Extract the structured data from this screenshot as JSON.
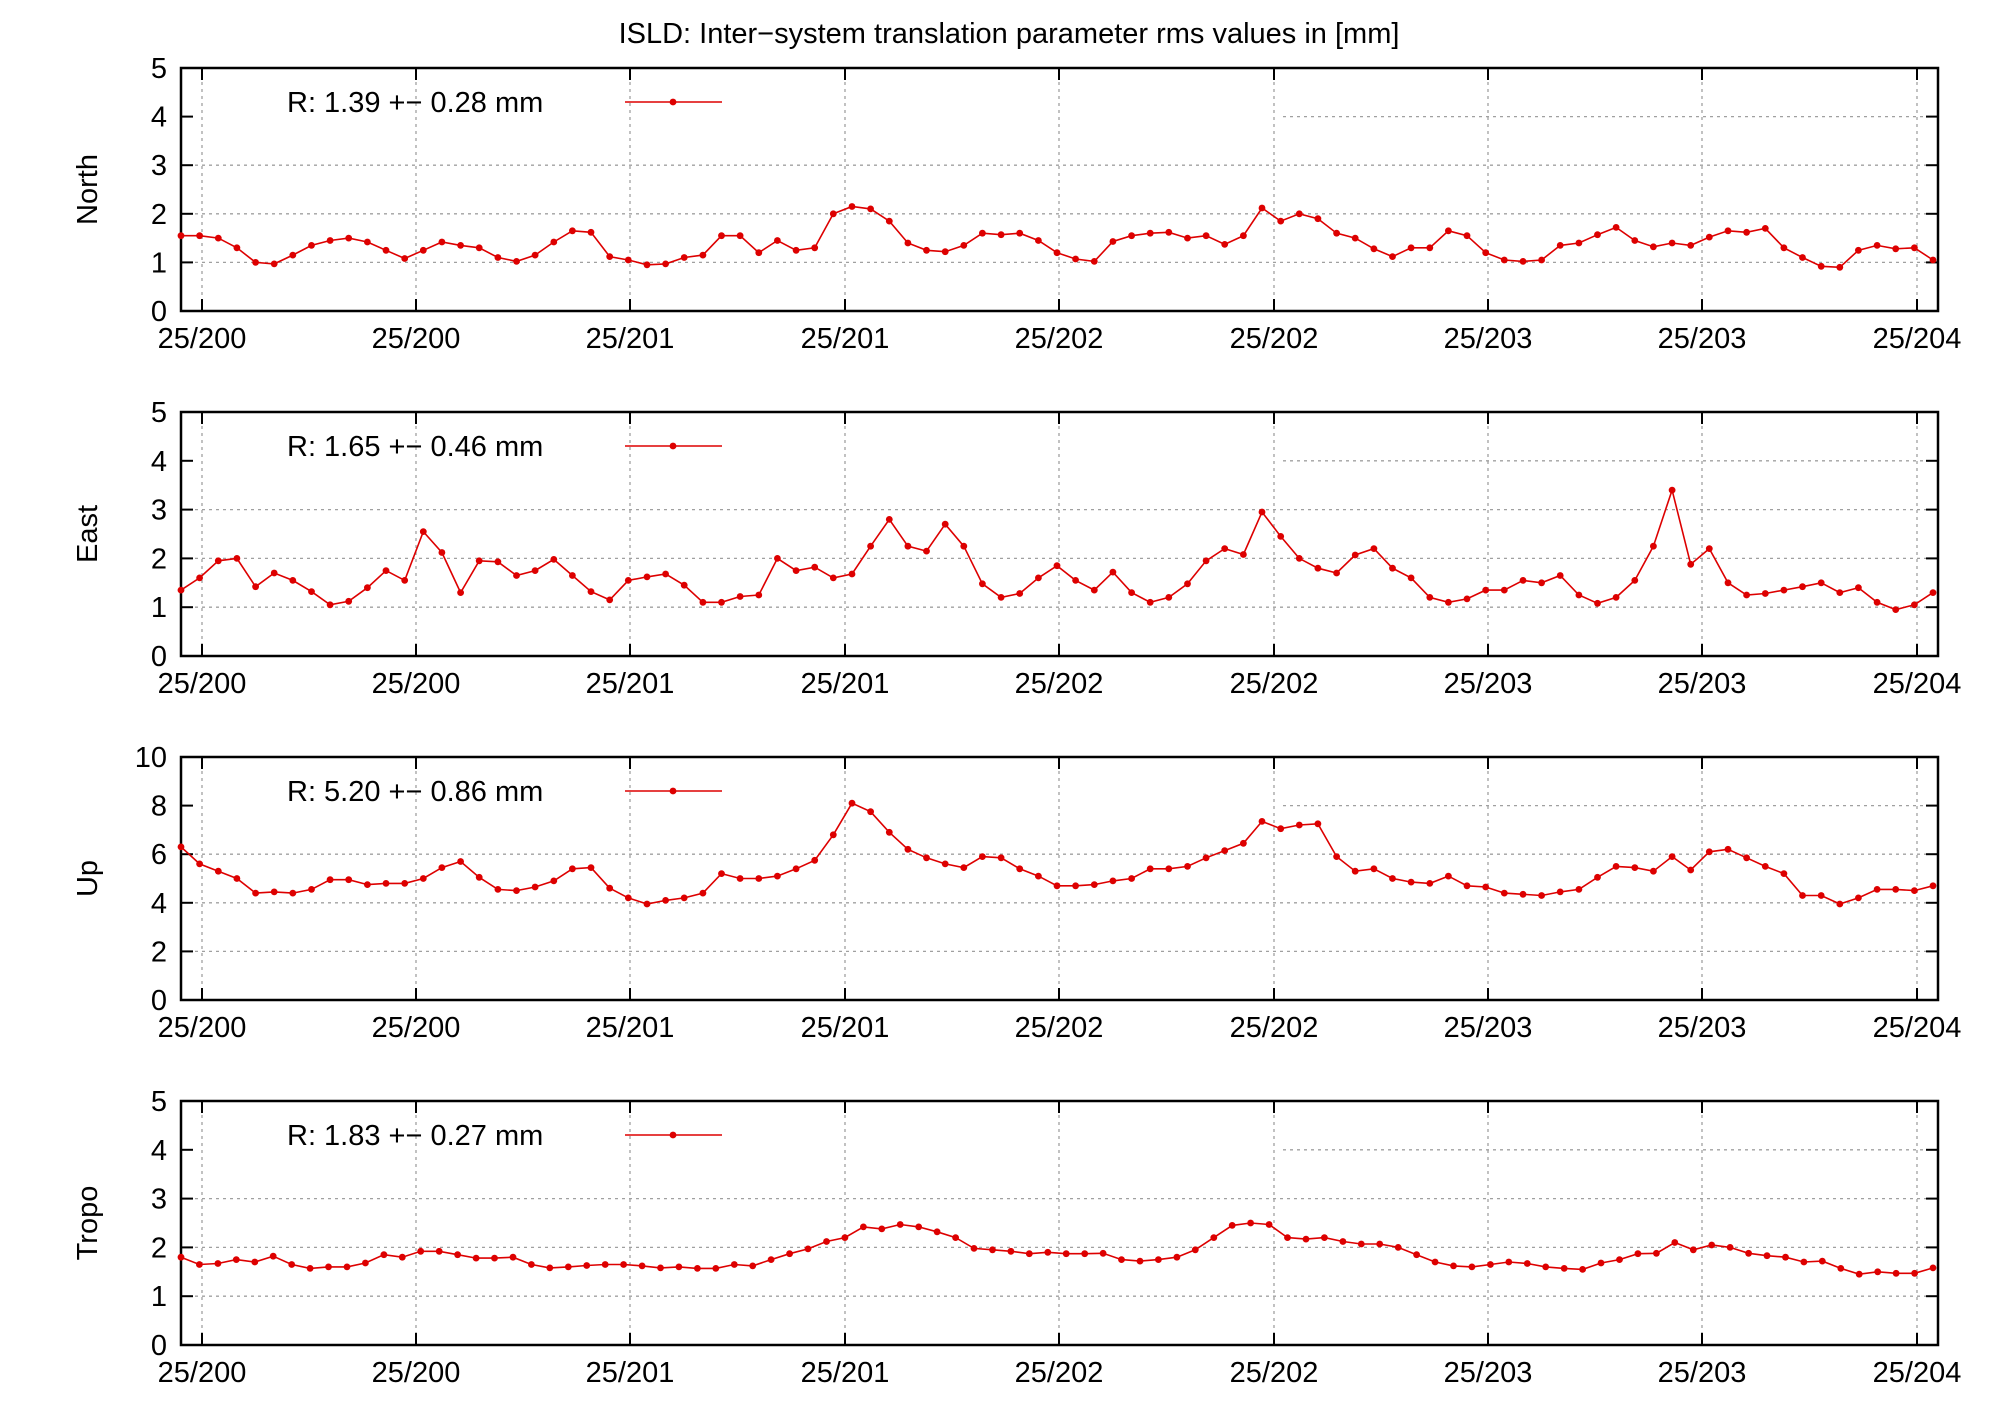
{
  "title": "ISLD: Inter−system translation parameter rms values in [mm]",
  "colors": {
    "series": "#dd0000",
    "grid": "#a0a0a0",
    "axis": "#000000"
  },
  "x_tick_labels": [
    "25/200",
    "25/200",
    "25/201",
    "25/201",
    "25/202",
    "25/202",
    "25/203",
    "25/203",
    "25/204"
  ],
  "chart_data": [
    {
      "type": "line",
      "ylabel": "North",
      "ylim": [
        0,
        5
      ],
      "yticks": [
        0,
        1,
        2,
        3,
        4,
        5
      ],
      "legend": "R:   1.39 +− 0.28 mm",
      "legend_placement": "top-left",
      "grid": true,
      "values": [
        1.55,
        1.55,
        1.5,
        1.3,
        1.0,
        0.97,
        1.15,
        1.35,
        1.45,
        1.5,
        1.42,
        1.25,
        1.08,
        1.25,
        1.42,
        1.35,
        1.3,
        1.1,
        1.02,
        1.15,
        1.42,
        1.65,
        1.62,
        1.12,
        1.05,
        0.95,
        0.97,
        1.1,
        1.15,
        1.55,
        1.55,
        1.2,
        1.45,
        1.25,
        1.3,
        2.0,
        2.15,
        2.1,
        1.85,
        1.4,
        1.25,
        1.22,
        1.35,
        1.6,
        1.57,
        1.6,
        1.45,
        1.2,
        1.07,
        1.02,
        1.43,
        1.55,
        1.6,
        1.62,
        1.5,
        1.55,
        1.37,
        1.55,
        2.12,
        1.85,
        2.0,
        1.9,
        1.6,
        1.5,
        1.28,
        1.12,
        1.3,
        1.3,
        1.65,
        1.55,
        1.2,
        1.05,
        1.02,
        1.05,
        1.35,
        1.4,
        1.57,
        1.72,
        1.45,
        1.32,
        1.4,
        1.35,
        1.52,
        1.65,
        1.62,
        1.7,
        1.3,
        1.1,
        0.92,
        0.9,
        1.25,
        1.35,
        1.28,
        1.3,
        1.05
      ]
    },
    {
      "type": "line",
      "ylabel": "East",
      "ylim": [
        0,
        5
      ],
      "yticks": [
        0,
        1,
        2,
        3,
        4,
        5
      ],
      "legend": "R:   1.65 +− 0.46 mm",
      "legend_placement": "top-left",
      "grid": true,
      "values": [
        1.35,
        1.6,
        1.95,
        2.0,
        1.42,
        1.7,
        1.55,
        1.32,
        1.05,
        1.12,
        1.4,
        1.75,
        1.55,
        2.55,
        2.12,
        1.3,
        1.95,
        1.93,
        1.65,
        1.75,
        1.98,
        1.65,
        1.32,
        1.15,
        1.55,
        1.62,
        1.68,
        1.45,
        1.1,
        1.1,
        1.22,
        1.25,
        2.0,
        1.75,
        1.82,
        1.6,
        1.68,
        2.25,
        2.8,
        2.25,
        2.15,
        2.7,
        2.25,
        1.48,
        1.2,
        1.28,
        1.6,
        1.85,
        1.55,
        1.35,
        1.72,
        1.3,
        1.1,
        1.2,
        1.48,
        1.95,
        2.2,
        2.08,
        2.95,
        2.45,
        2.0,
        1.8,
        1.7,
        2.07,
        2.2,
        1.8,
        1.6,
        1.2,
        1.1,
        1.17,
        1.35,
        1.35,
        1.55,
        1.5,
        1.65,
        1.25,
        1.08,
        1.2,
        1.55,
        2.25,
        3.4,
        1.88,
        2.2,
        1.5,
        1.25,
        1.28,
        1.35,
        1.42,
        1.5,
        1.3,
        1.4,
        1.1,
        0.95,
        1.05,
        1.3
      ]
    },
    {
      "type": "line",
      "ylabel": "Up",
      "ylim": [
        0,
        10
      ],
      "yticks": [
        0,
        2,
        4,
        6,
        8,
        10
      ],
      "legend": "R:   5.20 +− 0.86 mm",
      "legend_placement": "top-left",
      "grid": true,
      "values": [
        6.3,
        5.6,
        5.3,
        5.0,
        4.4,
        4.45,
        4.4,
        4.55,
        4.95,
        4.95,
        4.75,
        4.8,
        4.8,
        5.0,
        5.45,
        5.7,
        5.05,
        4.55,
        4.5,
        4.65,
        4.9,
        5.4,
        5.45,
        4.6,
        4.2,
        3.95,
        4.1,
        4.2,
        4.4,
        5.2,
        5.0,
        5.0,
        5.1,
        5.4,
        5.75,
        6.8,
        8.1,
        7.75,
        6.9,
        6.2,
        5.85,
        5.6,
        5.45,
        5.9,
        5.85,
        5.4,
        5.1,
        4.7,
        4.7,
        4.75,
        4.9,
        5.0,
        5.4,
        5.4,
        5.5,
        5.85,
        6.15,
        6.45,
        7.35,
        7.05,
        7.2,
        7.25,
        5.9,
        5.3,
        5.4,
        5.0,
        4.85,
        4.8,
        5.1,
        4.7,
        4.65,
        4.4,
        4.35,
        4.3,
        4.45,
        4.55,
        5.05,
        5.5,
        5.45,
        5.3,
        5.9,
        5.35,
        6.1,
        6.2,
        5.85,
        5.5,
        5.2,
        4.3,
        4.3,
        3.95,
        4.2,
        4.55,
        4.55,
        4.5,
        4.7
      ]
    },
    {
      "type": "line",
      "ylabel": "Tropo",
      "ylim": [
        0,
        5
      ],
      "yticks": [
        0,
        1,
        2,
        3,
        4,
        5
      ],
      "legend": "R:   1.83 +− 0.27 mm",
      "legend_placement": "top-left",
      "grid": true,
      "values": [
        1.8,
        1.65,
        1.67,
        1.75,
        1.7,
        1.82,
        1.65,
        1.57,
        1.6,
        1.6,
        1.68,
        1.85,
        1.8,
        1.92,
        1.92,
        1.85,
        1.78,
        1.78,
        1.8,
        1.65,
        1.58,
        1.6,
        1.63,
        1.65,
        1.65,
        1.62,
        1.58,
        1.6,
        1.57,
        1.57,
        1.65,
        1.62,
        1.75,
        1.87,
        1.97,
        2.12,
        2.2,
        2.42,
        2.38,
        2.47,
        2.42,
        2.32,
        2.2,
        1.98,
        1.95,
        1.92,
        1.87,
        1.9,
        1.87,
        1.87,
        1.88,
        1.75,
        1.72,
        1.75,
        1.8,
        1.95,
        2.2,
        2.45,
        2.5,
        2.47,
        2.2,
        2.17,
        2.2,
        2.12,
        2.07,
        2.07,
        2.0,
        1.85,
        1.7,
        1.62,
        1.6,
        1.65,
        1.7,
        1.67,
        1.6,
        1.57,
        1.55,
        1.68,
        1.75,
        1.87,
        1.88,
        2.1,
        1.95,
        2.05,
        2.0,
        1.88,
        1.83,
        1.8,
        1.7,
        1.72,
        1.57,
        1.45,
        1.5,
        1.47,
        1.47,
        1.58
      ]
    }
  ]
}
